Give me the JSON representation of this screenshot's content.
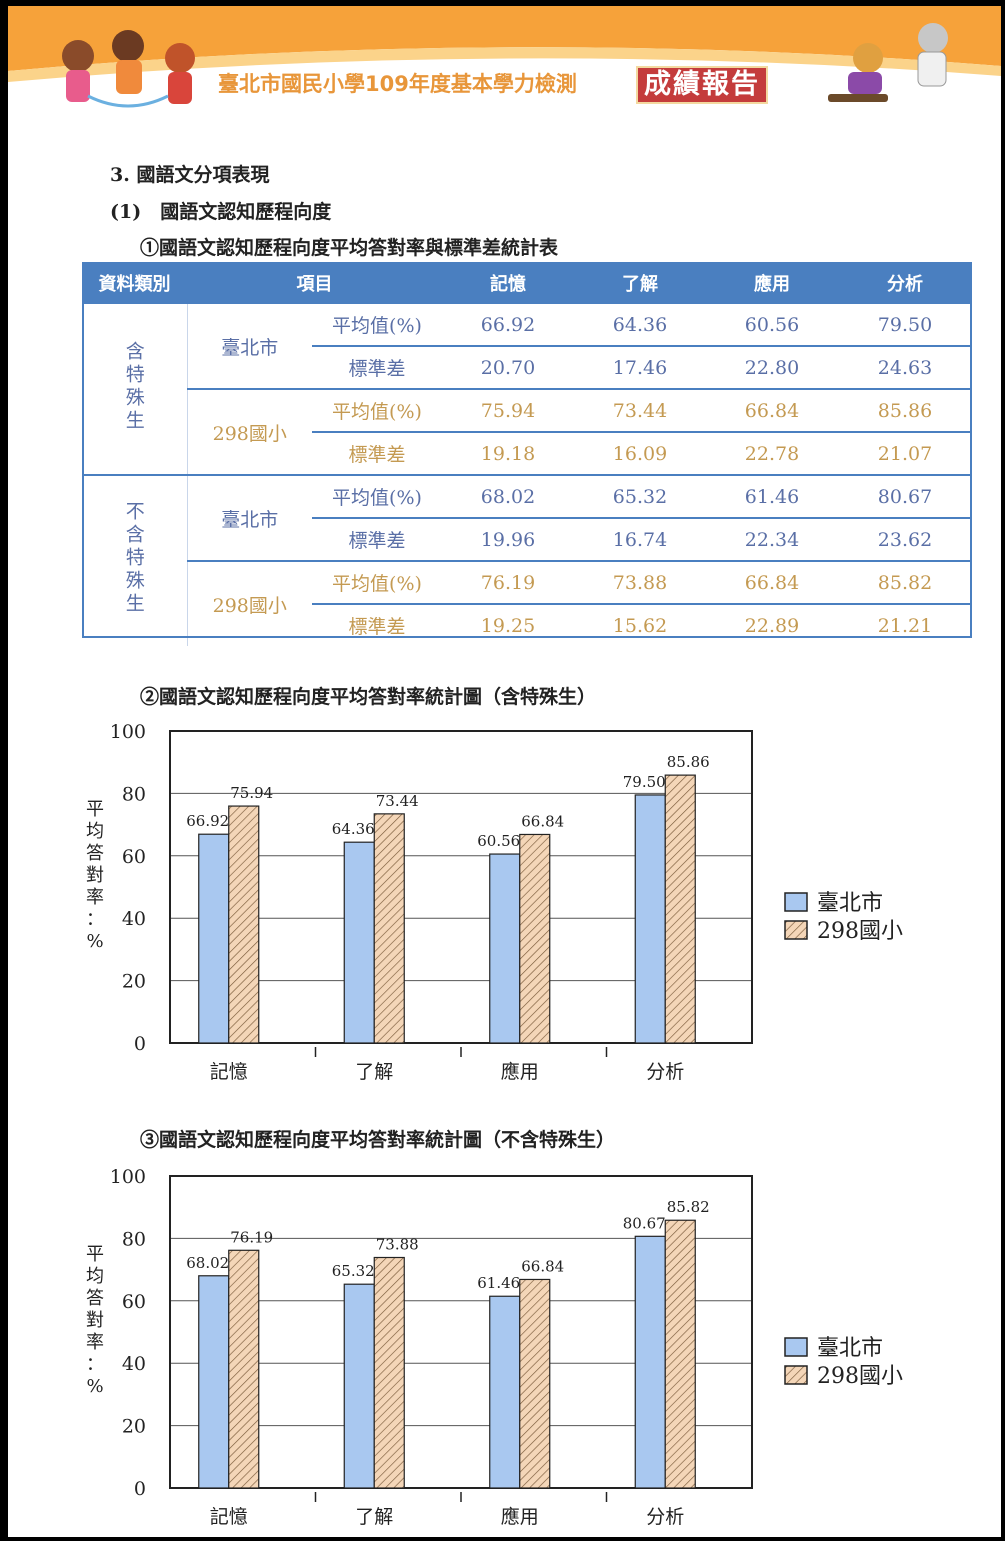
{
  "banner": {
    "title": "臺北市國民小學109年度基本學力檢測",
    "badge": "成績報告"
  },
  "headings": {
    "h1": "3. 國語文分項表現",
    "h2": "(1)　國語文認知歷程向度",
    "h3": "①國語文認知歷程向度平均答對率與標準差統計表"
  },
  "table": {
    "headers": [
      "資料類別",
      "項目",
      "記憶",
      "了解",
      "應用",
      "分析"
    ],
    "groups": [
      {
        "label": "含特殊生",
        "schools": [
          {
            "name": "臺北市",
            "rows": [
              {
                "label": "平均值(%)",
                "values": [
                  "66.92",
                  "64.36",
                  "60.56",
                  "79.50"
                ]
              },
              {
                "label": "標準差",
                "values": [
                  "20.70",
                  "17.46",
                  "22.80",
                  "24.63"
                ]
              }
            ]
          },
          {
            "name": "298國小",
            "rows": [
              {
                "label": "平均值(%)",
                "values": [
                  "75.94",
                  "73.44",
                  "66.84",
                  "85.86"
                ]
              },
              {
                "label": "標準差",
                "values": [
                  "19.18",
                  "16.09",
                  "22.78",
                  "21.07"
                ]
              }
            ]
          }
        ]
      },
      {
        "label": "不含特殊生",
        "schools": [
          {
            "name": "臺北市",
            "rows": [
              {
                "label": "平均值(%)",
                "values": [
                  "68.02",
                  "65.32",
                  "61.46",
                  "80.67"
                ]
              },
              {
                "label": "標準差",
                "values": [
                  "19.96",
                  "16.74",
                  "22.34",
                  "23.62"
                ]
              }
            ]
          },
          {
            "name": "298國小",
            "rows": [
              {
                "label": "平均值(%)",
                "values": [
                  "76.19",
                  "73.88",
                  "66.84",
                  "85.82"
                ]
              },
              {
                "label": "標準差",
                "values": [
                  "19.25",
                  "15.62",
                  "22.89",
                  "21.21"
                ]
              }
            ]
          }
        ]
      }
    ]
  },
  "chart_data": [
    {
      "type": "bar",
      "title": "②國語文認知歷程向度平均答對率統計圖（含特殊生）",
      "categories": [
        "記憶",
        "了解",
        "應用",
        "分析"
      ],
      "series": [
        {
          "name": "臺北市",
          "values": [
            66.92,
            64.36,
            60.56,
            79.5
          ],
          "labels": [
            "66.92",
            "64.36",
            "60.56",
            "79.50"
          ],
          "color": "#a9c8f0"
        },
        {
          "name": "298國小",
          "values": [
            75.94,
            73.44,
            66.84,
            85.86
          ],
          "labels": [
            "75.94",
            "73.44",
            "66.84",
            "85.86"
          ],
          "color": "#f4d6b8"
        }
      ],
      "ylabel": "平均答對率：%",
      "ylim": [
        0,
        100
      ],
      "yticks": [
        "0",
        "20",
        "40",
        "60",
        "80",
        "100"
      ],
      "grid": true,
      "legend": "right"
    },
    {
      "type": "bar",
      "title": "③國語文認知歷程向度平均答對率統計圖（不含特殊生）",
      "categories": [
        "記憶",
        "了解",
        "應用",
        "分析"
      ],
      "series": [
        {
          "name": "臺北市",
          "values": [
            68.02,
            65.32,
            61.46,
            80.67
          ],
          "labels": [
            "68.02",
            "65.32",
            "61.46",
            "80.67"
          ],
          "color": "#a9c8f0"
        },
        {
          "name": "298國小",
          "values": [
            76.19,
            73.88,
            66.84,
            85.82
          ],
          "labels": [
            "76.19",
            "73.88",
            "66.84",
            "85.82"
          ],
          "color": "#f4d6b8"
        }
      ],
      "ylabel": "平均答對率：%",
      "ylim": [
        0,
        100
      ],
      "yticks": [
        "0",
        "20",
        "40",
        "60",
        "80",
        "100"
      ],
      "grid": true,
      "legend": "right"
    }
  ]
}
